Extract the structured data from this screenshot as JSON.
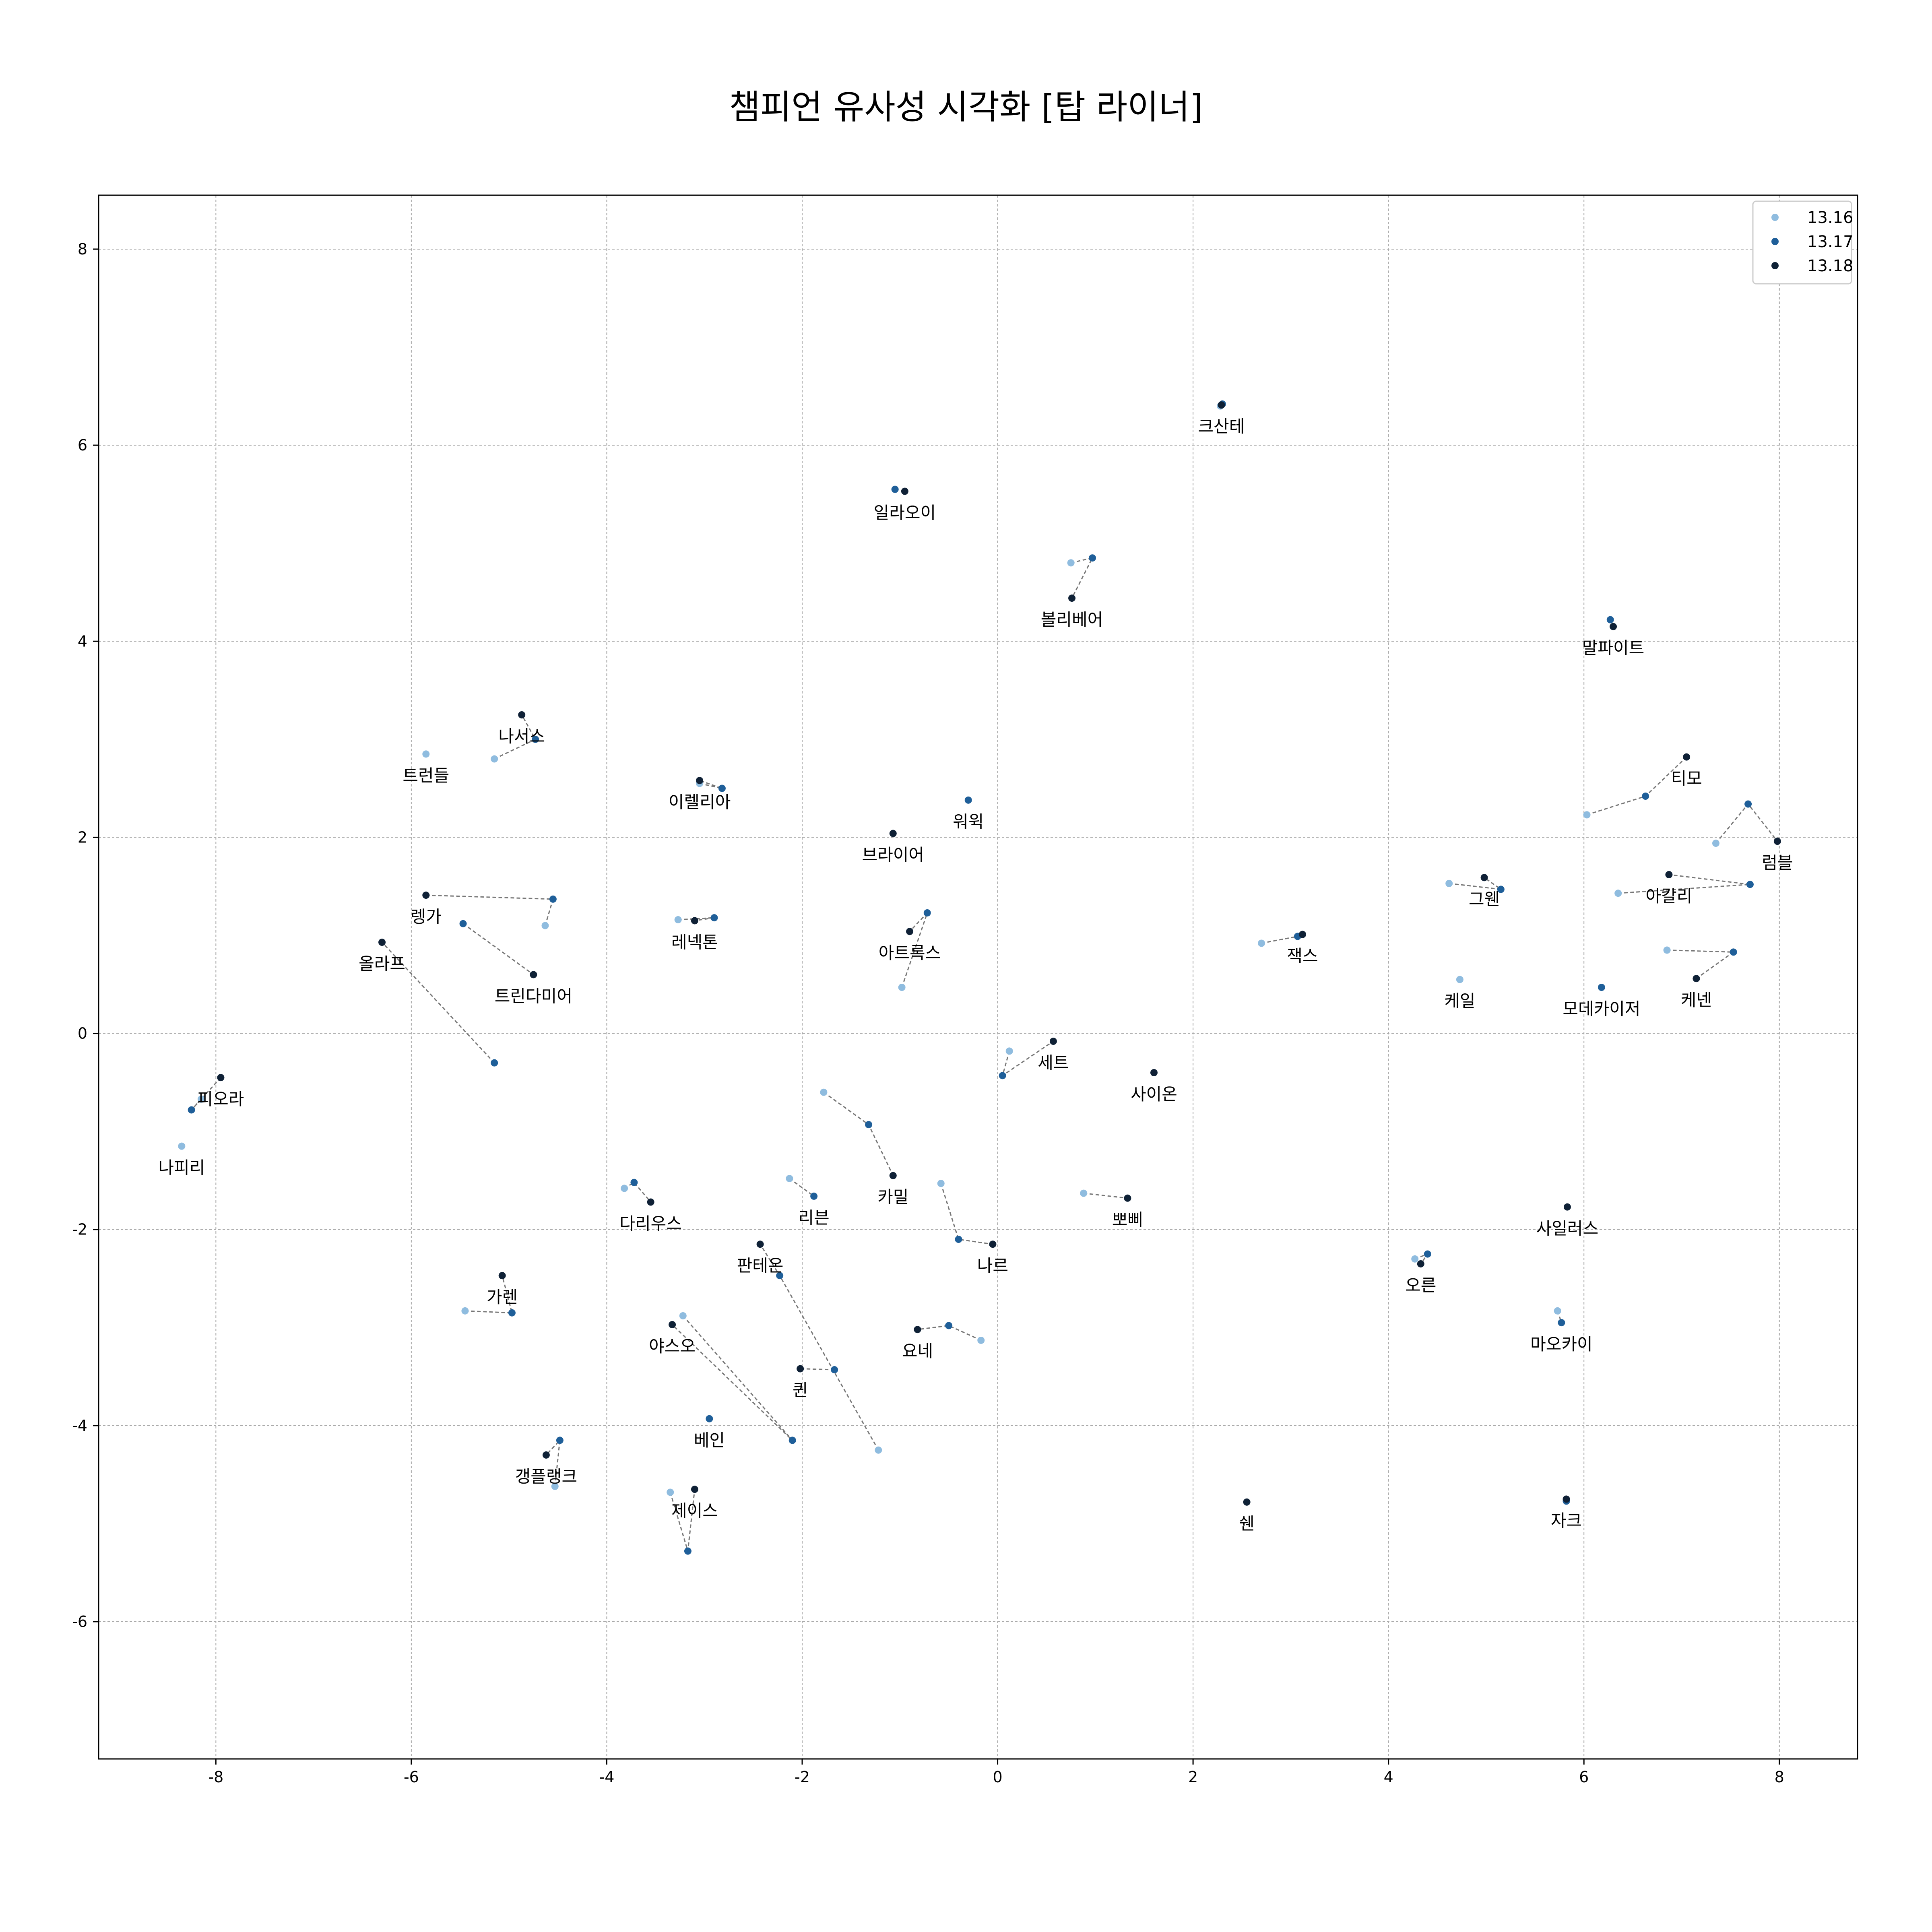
{
  "chart_data": {
    "type": "scatter",
    "title": "챔피언 유사성 시각화 [탑 라이너]",
    "xlabel": "",
    "ylabel": "",
    "xlim": [
      -9.2,
      8.8
    ],
    "ylim": [
      -7.4,
      8.55
    ],
    "xticks": [
      -8,
      -6,
      -4,
      -2,
      0,
      2,
      4,
      6,
      8
    ],
    "yticks": [
      -6,
      -4,
      -2,
      0,
      2,
      4,
      6,
      8
    ],
    "grid": true,
    "legend_position": "top-right",
    "series": [
      {
        "name": "13.16",
        "color": "#8fbcdf"
      },
      {
        "name": "13.17",
        "color": "#1f5f99"
      },
      {
        "name": "13.18",
        "color": "#0f2136"
      }
    ],
    "champions": [
      {
        "name": "크산테",
        "points": [
          [
            2.28,
            6.4
          ],
          [
            2.3,
            6.42
          ],
          [
            2.29,
            6.41
          ]
        ]
      },
      {
        "name": "일라오이",
        "points": [
          [
            -1.05,
            5.55
          ],
          [
            -1.05,
            5.55
          ],
          [
            -0.95,
            5.53
          ]
        ]
      },
      {
        "name": "볼리베어",
        "points": [
          [
            0.75,
            4.8
          ],
          [
            0.97,
            4.85
          ],
          [
            0.76,
            4.44
          ]
        ]
      },
      {
        "name": "말파이트",
        "points": [
          [
            null,
            null
          ],
          [
            6.27,
            4.22
          ],
          [
            6.3,
            4.15
          ]
        ]
      },
      {
        "name": "나서스",
        "points": [
          [
            -5.15,
            2.8
          ],
          [
            -4.73,
            3.0
          ],
          [
            -4.87,
            3.25
          ]
        ]
      },
      {
        "name": "트런들",
        "points": [
          [
            -5.85,
            2.85
          ],
          [
            null,
            null
          ],
          [
            null,
            null
          ]
        ]
      },
      {
        "name": "이렐리아",
        "points": [
          [
            -3.05,
            2.55
          ],
          [
            -2.82,
            2.5
          ],
          [
            -3.05,
            2.58
          ]
        ]
      },
      {
        "name": "워윅",
        "points": [
          [
            null,
            null
          ],
          [
            -0.3,
            2.38
          ],
          [
            null,
            null
          ]
        ]
      },
      {
        "name": "브라이어",
        "points": [
          [
            null,
            null
          ],
          [
            null,
            null
          ],
          [
            -1.07,
            2.04
          ]
        ]
      },
      {
        "name": "티모",
        "points": [
          [
            6.03,
            2.23
          ],
          [
            6.63,
            2.42
          ],
          [
            7.05,
            2.82
          ]
        ]
      },
      {
        "name": "럼블",
        "points": [
          [
            7.35,
            1.94
          ],
          [
            7.68,
            2.34
          ],
          [
            7.98,
            1.96
          ]
        ]
      },
      {
        "name": "그웬",
        "points": [
          [
            4.62,
            1.53
          ],
          [
            5.15,
            1.47
          ],
          [
            4.98,
            1.59
          ]
        ]
      },
      {
        "name": "아칼리",
        "points": [
          [
            6.35,
            1.43
          ],
          [
            7.7,
            1.52
          ],
          [
            6.87,
            1.62
          ]
        ]
      },
      {
        "name": "렝가",
        "points": [
          [
            -4.63,
            1.1
          ],
          [
            -4.55,
            1.37
          ],
          [
            -5.85,
            1.41
          ]
        ]
      },
      {
        "name": "레넥톤",
        "points": [
          [
            -3.27,
            1.16
          ],
          [
            -2.9,
            1.18
          ],
          [
            -3.1,
            1.15
          ]
        ]
      },
      {
        "name": "아트록스",
        "points": [
          [
            -0.98,
            0.47
          ],
          [
            -0.72,
            1.23
          ],
          [
            -0.9,
            1.04
          ]
        ]
      },
      {
        "name": "잭스",
        "points": [
          [
            2.7,
            0.92
          ],
          [
            3.07,
            0.99
          ],
          [
            3.12,
            1.01
          ]
        ]
      },
      {
        "name": "올라프",
        "points": [
          [
            null,
            null
          ],
          [
            -5.15,
            -0.3
          ],
          [
            -6.3,
            0.93
          ]
        ]
      },
      {
        "name": "트린다미어",
        "points": [
          [
            null,
            null
          ],
          [
            -5.47,
            1.12
          ],
          [
            -4.75,
            0.6
          ]
        ]
      },
      {
        "name": "케일",
        "points": [
          [
            4.73,
            0.55
          ],
          [
            null,
            null
          ],
          [
            null,
            null
          ]
        ]
      },
      {
        "name": "모데카이저",
        "points": [
          [
            null,
            null
          ],
          [
            6.18,
            0.47
          ],
          [
            null,
            null
          ]
        ]
      },
      {
        "name": "케넨",
        "points": [
          [
            6.85,
            0.85
          ],
          [
            7.53,
            0.83
          ],
          [
            7.15,
            0.56
          ]
        ]
      },
      {
        "name": "세트",
        "points": [
          [
            0.12,
            -0.18
          ],
          [
            0.05,
            -0.43
          ],
          [
            0.57,
            -0.08
          ]
        ]
      },
      {
        "name": "사이온",
        "points": [
          [
            null,
            null
          ],
          [
            null,
            null
          ],
          [
            1.6,
            -0.4
          ]
        ]
      },
      {
        "name": "피오라",
        "points": [
          [
            -8.15,
            -0.67
          ],
          [
            -8.25,
            -0.78
          ],
          [
            -7.95,
            -0.45
          ]
        ]
      },
      {
        "name": "나피리",
        "points": [
          [
            -8.35,
            -1.15
          ],
          [
            null,
            null
          ],
          [
            null,
            null
          ]
        ]
      },
      {
        "name": "카밀",
        "points": [
          [
            -1.78,
            -0.6
          ],
          [
            -1.32,
            -0.93
          ],
          [
            -1.07,
            -1.45
          ]
        ]
      },
      {
        "name": "다리우스",
        "points": [
          [
            -3.82,
            -1.58
          ],
          [
            -3.72,
            -1.52
          ],
          [
            -3.55,
            -1.72
          ]
        ]
      },
      {
        "name": "리븐",
        "points": [
          [
            -2.13,
            -1.48
          ],
          [
            -1.88,
            -1.66
          ],
          [
            null,
            null
          ]
        ]
      },
      {
        "name": "뽀삐",
        "points": [
          [
            0.88,
            -1.63
          ],
          [
            null,
            null
          ],
          [
            1.33,
            -1.68
          ]
        ]
      },
      {
        "name": "나르",
        "points": [
          [
            -0.58,
            -1.53
          ],
          [
            -0.4,
            -2.1
          ],
          [
            -0.05,
            -2.15
          ]
        ]
      },
      {
        "name": "사일러스",
        "points": [
          [
            null,
            null
          ],
          [
            null,
            null
          ],
          [
            5.83,
            -1.77
          ]
        ]
      },
      {
        "name": "판테온",
        "points": [
          [
            -1.22,
            -4.25
          ],
          [
            -2.23,
            -2.47
          ],
          [
            -2.43,
            -2.15
          ]
        ]
      },
      {
        "name": "오른",
        "points": [
          [
            4.27,
            -2.3
          ],
          [
            4.4,
            -2.25
          ],
          [
            4.33,
            -2.35
          ]
        ]
      },
      {
        "name": "가렌",
        "points": [
          [
            -5.45,
            -2.83
          ],
          [
            -4.97,
            -2.85
          ],
          [
            -5.07,
            -2.47
          ]
        ]
      },
      {
        "name": "야스오",
        "points": [
          [
            -3.22,
            -2.88
          ],
          [
            -2.1,
            -4.15
          ],
          [
            -3.33,
            -2.97
          ]
        ]
      },
      {
        "name": "요네",
        "points": [
          [
            -0.17,
            -3.13
          ],
          [
            -0.5,
            -2.98
          ],
          [
            -0.82,
            -3.02
          ]
        ]
      },
      {
        "name": "마오카이",
        "points": [
          [
            5.73,
            -2.83
          ],
          [
            5.77,
            -2.95
          ],
          [
            null,
            null
          ]
        ]
      },
      {
        "name": "퀸",
        "points": [
          [
            null,
            null
          ],
          [
            -1.67,
            -3.43
          ],
          [
            -2.02,
            -3.42
          ]
        ]
      },
      {
        "name": "베인",
        "points": [
          [
            null,
            null
          ],
          [
            -2.95,
            -3.93
          ],
          [
            null,
            null
          ]
        ]
      },
      {
        "name": "갱플랭크",
        "points": [
          [
            -4.53,
            -4.62
          ],
          [
            -4.48,
            -4.15
          ],
          [
            -4.62,
            -4.3
          ]
        ]
      },
      {
        "name": "제이스",
        "points": [
          [
            -3.35,
            -4.68
          ],
          [
            -3.17,
            -5.28
          ],
          [
            -3.1,
            -4.65
          ]
        ]
      },
      {
        "name": "쉔",
        "points": [
          [
            null,
            null
          ],
          [
            null,
            null
          ],
          [
            2.55,
            -4.78
          ]
        ]
      },
      {
        "name": "자크",
        "points": [
          [
            5.82,
            -4.77
          ],
          [
            5.82,
            -4.77
          ],
          [
            5.82,
            -4.75
          ]
        ]
      }
    ]
  }
}
